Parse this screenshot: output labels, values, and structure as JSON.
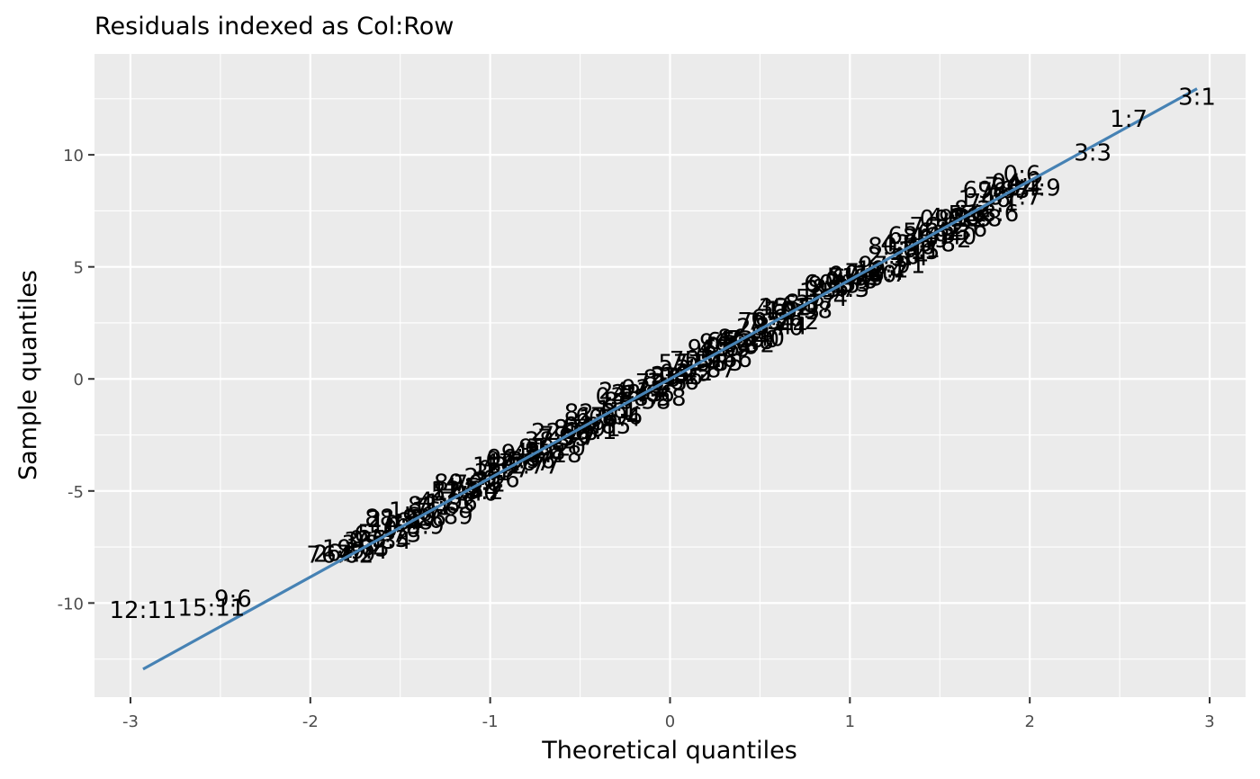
{
  "chart_data": {
    "type": "scatter",
    "title": "Residuals indexed as Col:Row",
    "xlabel": "Theoretical quantiles",
    "ylabel": "Sample quantiles",
    "xlim": [
      -3.2,
      3.2
    ],
    "ylim": [
      -14.2,
      14.5
    ],
    "x_ticks": [
      -3,
      -2,
      -1,
      0,
      1,
      2,
      3
    ],
    "x_tick_labels": [
      "-3",
      "-2",
      "-1",
      "0",
      "1",
      "2",
      "3"
    ],
    "y_ticks": [
      -10,
      -5,
      0,
      5,
      10
    ],
    "y_tick_labels": [
      "-10",
      "-5",
      "0",
      "5",
      "10"
    ],
    "grid": true,
    "legend": "none",
    "colors": {
      "panel_background": "#ebebeb",
      "grid_line": "#ffffff",
      "reference_line": "#4682b4",
      "label_text": "#000000",
      "tick_text": "#4d4d4d"
    },
    "reference_line": {
      "x": [
        -2.93,
        2.93
      ],
      "y": [
        -12.95,
        12.95
      ]
    },
    "labeled_points": [
      {
        "label": "12:11",
        "x": -2.93,
        "y": -10.3
      },
      {
        "label": "15:11",
        "x": -2.55,
        "y": -10.2
      },
      {
        "label": "9:6",
        "x": -2.43,
        "y": -9.8
      },
      {
        "label": "1:7",
        "x": 2.55,
        "y": 11.6
      },
      {
        "label": "3:1",
        "x": 2.93,
        "y": 12.6
      },
      {
        "label": "3:3",
        "x": 2.35,
        "y": 10.1
      }
    ]
  }
}
